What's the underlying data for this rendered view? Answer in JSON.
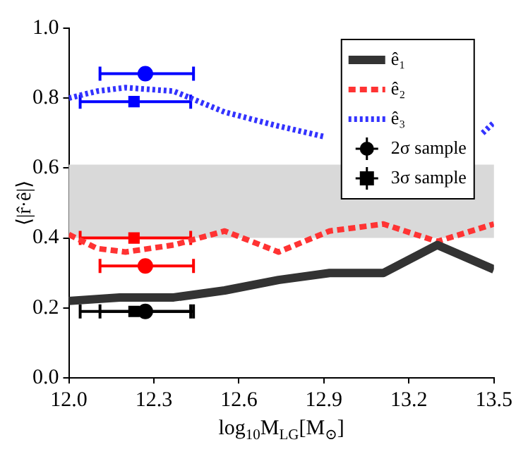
{
  "chart_data": {
    "type": "line",
    "xlabel": "log$_{10}$M$_{LG}$[M$_{⊙}$]",
    "ylabel": "⟨|r̂·ê|⟩",
    "xlim": [
      12.0,
      13.5
    ],
    "xticks": [
      {
        "value": 12.0,
        "label": "12.0"
      },
      12.3,
      12.6,
      12.9,
      13.2,
      13.5
    ],
    "ylim": [
      0.0,
      1.0
    ],
    "yticks": [
      {
        "value": 0.0,
        "label": "0.0"
      },
      0.2,
      0.4,
      0.6,
      0.8,
      {
        "value": 1.0,
        "label": "1.0"
      }
    ],
    "grid": false,
    "legend": "top right",
    "bands": [
      {
        "axis": "y",
        "from": 0.4,
        "to": 0.61,
        "color": "#d9d9d9"
      }
    ],
    "series": [
      {
        "name": "ê₁",
        "color": "#333333",
        "line_style": "solid",
        "x": [
          12.0,
          12.18,
          12.37,
          12.55,
          12.74,
          12.92,
          13.11,
          13.3,
          13.5
        ],
        "values": [
          0.22,
          0.23,
          0.23,
          0.25,
          0.28,
          0.3,
          0.3,
          0.38,
          0.31
        ]
      },
      {
        "name": "ê₂",
        "color": "#ff3333",
        "line_style": "dashed",
        "x": [
          12.0,
          12.1,
          12.2,
          12.37,
          12.55,
          12.74,
          12.92,
          13.11,
          13.3,
          13.5
        ],
        "values": [
          0.41,
          0.37,
          0.36,
          0.38,
          0.42,
          0.36,
          0.42,
          0.44,
          0.39,
          0.44
        ]
      },
      {
        "name": "ê₃",
        "color": "#3333ff",
        "line_style": "dotted",
        "x": [
          12.0,
          12.1,
          12.2,
          12.37,
          12.55,
          12.74,
          12.9,
          13.11,
          13.3,
          13.46,
          13.5
        ],
        "values": [
          0.8,
          0.82,
          0.83,
          0.82,
          0.76,
          0.72,
          0.69,
          null,
          null,
          0.7,
          0.73
        ]
      },
      {
        "name": "2σ sample",
        "type": "scatter",
        "marker": "circle",
        "color": "#000000",
        "colors": [
          "#0000ff",
          "#ff0000",
          "#000000"
        ],
        "x": [
          12.27,
          12.27,
          12.27
        ],
        "values": [
          0.87,
          0.32,
          0.19
        ],
        "xerrors": [
          [
            12.11,
            12.44
          ],
          [
            12.11,
            12.44
          ],
          [
            12.11,
            12.44
          ]
        ]
      },
      {
        "name": "3σ sample",
        "type": "scatter",
        "marker": "square",
        "color": "#000000",
        "colors": [
          "#0000ff",
          "#ff0000",
          "#000000"
        ],
        "x": [
          12.23,
          12.23,
          12.23
        ],
        "values": [
          0.79,
          0.4,
          0.19
        ],
        "xerrors": [
          [
            12.04,
            12.43
          ],
          [
            12.04,
            12.43
          ],
          [
            12.04,
            12.43
          ]
        ]
      }
    ]
  }
}
